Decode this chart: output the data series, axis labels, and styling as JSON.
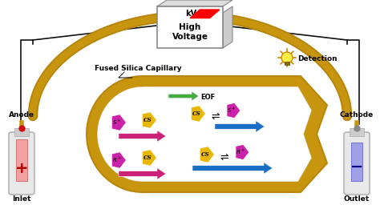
{
  "bg_color": "#ffffff",
  "gold_dark": "#b8860b",
  "gold_light": "#d4a017",
  "gold_fill": "#c8960e",
  "eof_arrow_color": "#44aa44",
  "blue_arrow_color": "#1a6fc4",
  "pink_arrow_color": "#cc2277",
  "magenta_color": "#cc22aa",
  "cs_color": "#e8b800",
  "wire_color": "#111111",
  "hv_border": "#888888",
  "anode_electrode": "#f08080",
  "cathode_electrode": "#8888cc",
  "vial_body": "#dddddd",
  "anode_label": "Anode",
  "cathode_label": "Cathode",
  "inlet_label": "Inlet",
  "outlet_label": "Outlet",
  "detection_label": "Detection",
  "fused_silica_label": "Fused Silica Capillary",
  "high_voltage_label": "High\nVoltage",
  "kv_label": "kV",
  "eof_label": "EOF"
}
